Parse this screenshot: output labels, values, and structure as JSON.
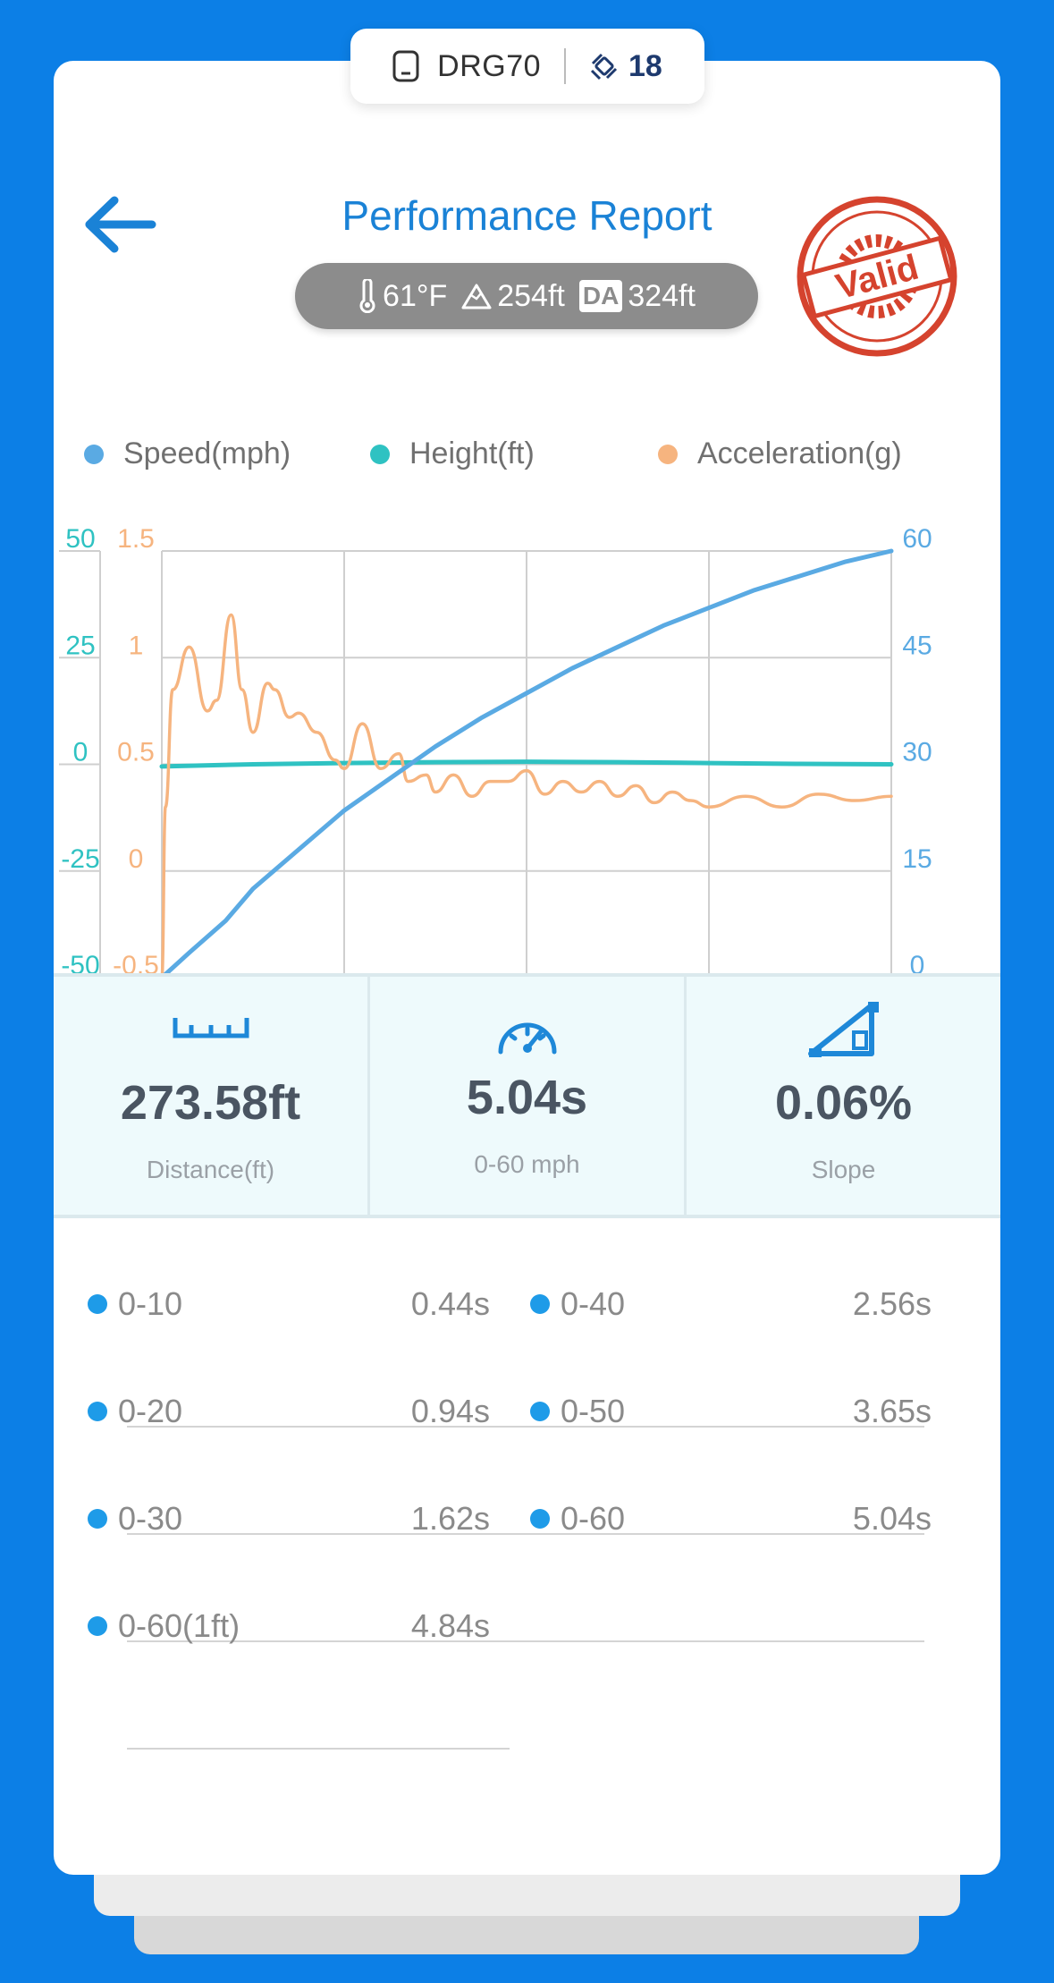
{
  "device": {
    "icon": "device-icon",
    "name": "DRG70",
    "satellite_icon": "satellite-icon",
    "satellites": "18"
  },
  "header": {
    "back_icon": "back-arrow-icon",
    "title": "Performance Report",
    "stamp_text": "Valid"
  },
  "conditions": {
    "temperature": "61°F",
    "altitude": "254ft",
    "da_label": "DA",
    "density_altitude": "324ft"
  },
  "legend": {
    "speed": "Speed(mph)",
    "height": "Height(ft)",
    "acceleration": "Acceleration(g)"
  },
  "colors": {
    "speed": "#5aaae3",
    "height": "#2fc2c2",
    "acceleration": "#f6b47f",
    "accent": "#1a82d6",
    "background": "#0c7fe6"
  },
  "chart_data": {
    "type": "line",
    "x_range": [
      0,
      4
    ],
    "grid": true,
    "axes": {
      "height_ticks": [
        "50",
        "25",
        "0",
        "-25",
        "-50"
      ],
      "acceleration_ticks": [
        "1.5",
        "1",
        "0.5",
        "0",
        "-0.5"
      ],
      "speed_ticks": [
        "60",
        "45",
        "30",
        "15",
        "0"
      ]
    },
    "series": [
      {
        "name": "Speed(mph)",
        "axis": "right",
        "range": [
          0,
          60
        ],
        "x": [
          0,
          0.15,
          0.35,
          0.5,
          0.75,
          1.0,
          1.25,
          1.5,
          1.75,
          2.0,
          2.25,
          2.5,
          2.75,
          3.0,
          3.25,
          3.5,
          3.75,
          4.0
        ],
        "values": [
          0,
          3.5,
          8,
          12.5,
          18,
          23.5,
          28,
          32.5,
          36.5,
          40,
          43.5,
          46.5,
          49.5,
          52,
          54.5,
          56.5,
          58.5,
          60
        ]
      },
      {
        "name": "Height(ft)",
        "axis": "left-outer",
        "range": [
          -50,
          50
        ],
        "x": [
          0,
          0.5,
          1.0,
          1.5,
          2.0,
          2.5,
          3.0,
          3.5,
          4.0
        ],
        "values": [
          -0.5,
          0,
          0.3,
          0.5,
          0.6,
          0.5,
          0.3,
          0.1,
          0
        ]
      },
      {
        "name": "Acceleration(g)",
        "axis": "left-inner",
        "range": [
          -0.5,
          1.5
        ],
        "x": [
          0,
          0.02,
          0.06,
          0.15,
          0.25,
          0.3,
          0.38,
          0.44,
          0.5,
          0.58,
          0.62,
          0.7,
          0.75,
          0.85,
          0.95,
          1.0,
          1.1,
          1.2,
          1.3,
          1.35,
          1.45,
          1.5,
          1.6,
          1.7,
          1.8,
          1.9,
          2.0,
          2.1,
          2.2,
          2.3,
          2.4,
          2.5,
          2.6,
          2.7,
          2.8,
          2.9,
          3.0,
          3.2,
          3.4,
          3.6,
          3.8,
          4.0
        ],
        "values": [
          -0.5,
          0.3,
          0.85,
          1.05,
          0.75,
          0.8,
          1.2,
          0.85,
          0.65,
          0.88,
          0.85,
          0.72,
          0.74,
          0.65,
          0.52,
          0.48,
          0.69,
          0.48,
          0.55,
          0.42,
          0.45,
          0.37,
          0.45,
          0.35,
          0.42,
          0.42,
          0.47,
          0.36,
          0.42,
          0.37,
          0.42,
          0.35,
          0.4,
          0.32,
          0.37,
          0.33,
          0.3,
          0.35,
          0.3,
          0.36,
          0.33,
          0.35
        ]
      }
    ]
  },
  "stats": [
    {
      "icon": "ruler-icon",
      "value": "273.58ft",
      "label": "Distance(ft)"
    },
    {
      "icon": "speedometer-icon",
      "value": "5.04s",
      "label": "0-60 mph"
    },
    {
      "icon": "slope-icon",
      "value": "0.06%",
      "label": "Slope"
    }
  ],
  "splits": [
    {
      "label": "0-10",
      "time": "0.44s"
    },
    {
      "label": "0-40",
      "time": "2.56s"
    },
    {
      "label": "0-20",
      "time": "0.94s"
    },
    {
      "label": "0-50",
      "time": "3.65s"
    },
    {
      "label": "0-30",
      "time": "1.62s"
    },
    {
      "label": "0-60",
      "time": "5.04s"
    },
    {
      "label": "0-60(1ft)",
      "time": "4.84s"
    }
  ]
}
